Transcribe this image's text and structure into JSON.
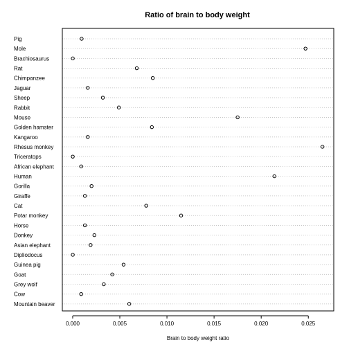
{
  "chart_data": {
    "type": "scatter",
    "title": "Ratio of brain to body weight",
    "xlabel": "Brain to body weight ratio",
    "ylabel": "",
    "xlim": [
      -0.0011,
      0.0277
    ],
    "xticks": [
      0.0,
      0.005,
      0.01,
      0.015,
      0.02,
      0.025
    ],
    "xtick_labels": [
      "0.000",
      "0.005",
      "0.010",
      "0.015",
      "0.020",
      "0.025"
    ],
    "grid": "dotted horizontal per category",
    "categories": [
      "Pig",
      "Mole",
      "Brachiosaurus",
      "Rat",
      "Chimpanzee",
      "Jaguar",
      "Sheep",
      "Rabbit",
      "Mouse",
      "Golden hamster",
      "Kangaroo",
      "Rhesus monkey",
      "Triceratops",
      "African elephant",
      "Human",
      "Gorilla",
      "Giraffe",
      "Cat",
      "Potar monkey",
      "Horse",
      "Donkey",
      "Asian elephant",
      "Dipliodocus",
      "Guinea pig",
      "Goat",
      "Grey wolf",
      "Cow",
      "Mountain beaver"
    ],
    "values": [
      0.00095,
      0.0247,
      1e-05,
      0.0068,
      0.0085,
      0.0016,
      0.0032,
      0.0049,
      0.0175,
      0.0084,
      0.0016,
      0.0265,
      1e-05,
      0.0009,
      0.0214,
      0.002,
      0.0013,
      0.0078,
      0.0115,
      0.0013,
      0.0023,
      0.0019,
      1e-05,
      0.0054,
      0.0042,
      0.0033,
      0.0009,
      0.006
    ]
  }
}
